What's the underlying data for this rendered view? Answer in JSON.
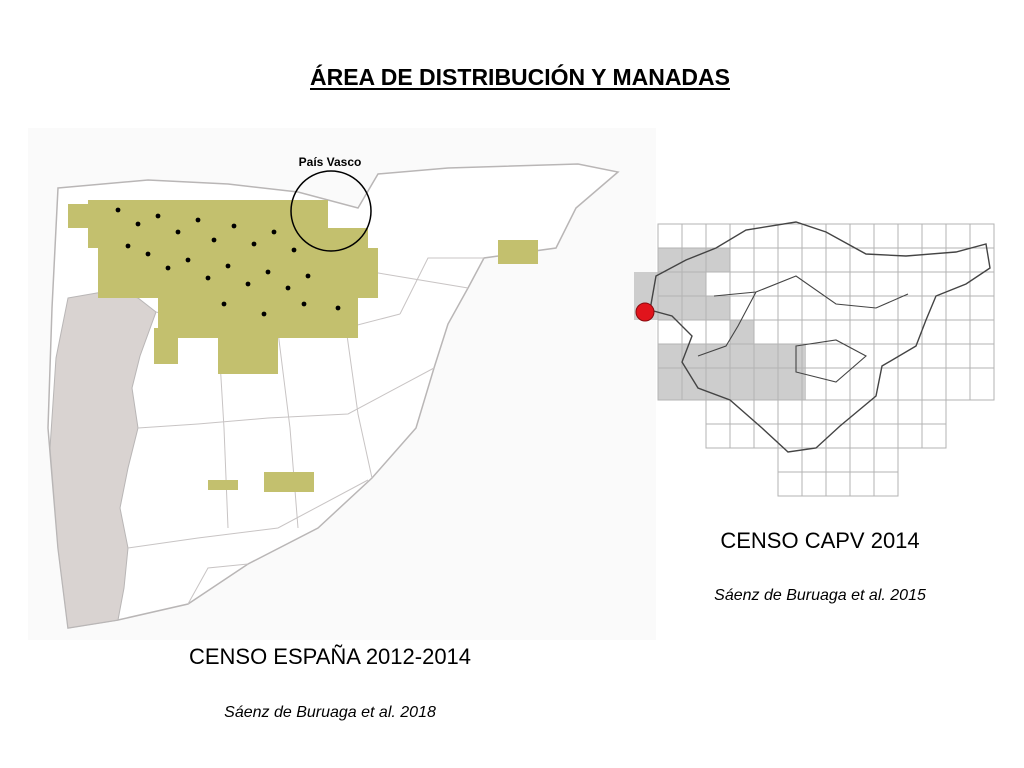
{
  "title": "ÁREA DE DISTRIBUCIÓN Y MANADAS",
  "spain_map": {
    "region_label": "País Vasco",
    "census_title": "CENSO ESPAÑA 2012-2014",
    "reference": "Sáenz de Buruaga et al. 2018",
    "colors": {
      "land": "#fbfafa",
      "portugal": "#d9d3d1",
      "border": "#b9b6b6",
      "presence_square": "#c3c06e",
      "pack_dot": "#000000"
    }
  },
  "capv_map": {
    "census_title": "CENSO CAPV 2014",
    "reference": "Sáenz de Buruaga et al. 2015",
    "colors": {
      "grid_line": "#b3b3b3",
      "shaded_cell": "#cdcdcd",
      "outline": "#444444",
      "pack_marker": "#e1141c"
    }
  }
}
